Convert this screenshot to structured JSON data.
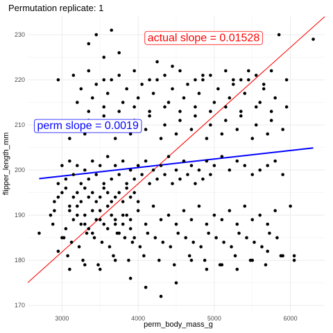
{
  "chart_data": {
    "type": "scatter",
    "title": "Permutation replicate: 1",
    "xlabel": "perm_body_mass_g",
    "ylabel": "flipper_length_mm",
    "xlim": [
      2550,
      6450
    ],
    "ylim": [
      168.5,
      234
    ],
    "x_ticks": [
      3000,
      4000,
      5000,
      6000
    ],
    "y_ticks": [
      170,
      180,
      190,
      200,
      210,
      220,
      230
    ],
    "grid": true,
    "annotations": [
      {
        "text": "actual slope = 0.01528",
        "x": 4860,
        "y": 229.5,
        "color": "#ff0000"
      },
      {
        "text": "perm slope = 0.0019",
        "x": 3340,
        "y": 210,
        "color": "#0000ff"
      }
    ],
    "lines": [
      {
        "name": "actual",
        "color": "#ff0000",
        "x": [
          2550,
          6450
        ],
        "y": [
          175.05,
          234.0
        ]
      },
      {
        "name": "perm",
        "color": "#0000ff",
        "x": [
          2700,
          6300
        ],
        "y": [
          198.1,
          204.9
        ]
      }
    ],
    "points": {
      "x": [
        2700,
        2850,
        2880,
        2900,
        2950,
        3000,
        3050,
        3100,
        3150,
        3200,
        3250,
        3300,
        3350,
        3400,
        3450,
        3500,
        3550,
        3600,
        3650,
        3700,
        3750,
        3800,
        3850,
        3900,
        3950,
        2900,
        2950,
        3000,
        3050,
        3100,
        3150,
        3200,
        3250,
        3300,
        3350,
        3400,
        3450,
        3500,
        3550,
        3600,
        3650,
        3700,
        3750,
        3800,
        3850,
        3900,
        3950,
        4000,
        2950,
        3050,
        3150,
        3250,
        3350,
        3450,
        3550,
        3650,
        3750,
        3850,
        3950,
        4050,
        4150,
        4250,
        4350,
        4450,
        4550,
        4650,
        4750,
        4850,
        4950,
        3000,
        3100,
        3200,
        3300,
        3400,
        3500,
        3600,
        3700,
        3800,
        3900,
        4000,
        4100,
        4200,
        4300,
        4400,
        4500,
        4600,
        4700,
        4800,
        4900,
        5000,
        5100,
        5200,
        5300,
        5400,
        5500,
        5600,
        5700,
        5800,
        5900,
        3025,
        3125,
        3225,
        3325,
        3425,
        3525,
        3625,
        3725,
        3825,
        3925,
        4025,
        4125,
        4225,
        4325,
        4425,
        4525,
        4625,
        4725,
        4825,
        4925,
        5025,
        5125,
        5225,
        5325,
        5425,
        5525,
        5625,
        5725,
        5825,
        3075,
        3275,
        3475,
        3675,
        3875,
        4075,
        4275,
        4475,
        4675,
        4875,
        5075,
        5275,
        5475,
        5675,
        5875,
        6050,
        3150,
        3350,
        3550,
        3750,
        3950,
        4150,
        4350,
        4550,
        4750,
        4950,
        5150,
        5350,
        5550,
        5750,
        3200,
        3400,
        3600,
        3800,
        4000,
        4200,
        4400,
        4600,
        4800,
        5000,
        5200,
        5400,
        5600,
        5800,
        3250,
        3450,
        3650,
        3850,
        4050,
        4250,
        4450,
        4650,
        4850,
        5050,
        5250,
        5450,
        5650,
        2950,
        3150,
        3350,
        3550,
        3750,
        3950,
        4150,
        4350,
        4550,
        4750,
        4950,
        5150,
        5350,
        5550,
        5750,
        5950,
        3100,
        3300,
        3500,
        3700,
        3900,
        4100,
        4300,
        4500,
        4700,
        4900,
        5100,
        5300,
        5500,
        5700,
        5900,
        3350,
        3550,
        3750,
        3950,
        4150,
        4350,
        4550,
        4750,
        4950,
        5150,
        5350,
        5550,
        5750,
        5950,
        3200,
        3400,
        3600,
        3800,
        4000,
        4200,
        4400,
        4600,
        4800,
        5000,
        5200,
        5400,
        5600,
        5800,
        6000,
        3300,
        3500,
        3700,
        3900,
        4100,
        4300,
        4500,
        4700,
        4900,
        5100,
        5300,
        5500,
        5700,
        3650,
        3450,
        3350,
        3550,
        3750,
        4250,
        4450,
        4850,
        5250,
        5650,
        6300,
        5850,
        5450,
        3100,
        3300,
        3500,
        3700,
        3900,
        4100,
        4300,
        4500,
        4700,
        4900,
        5100,
        5300,
        5500,
        5700,
        5900,
        6050
      ],
      "y": [
        186,
        190,
        188,
        191,
        182,
        185,
        187,
        191,
        189,
        192,
        188,
        190,
        187,
        186,
        189,
        191,
        188,
        187,
        190,
        189,
        186,
        188,
        190,
        187,
        185,
        193,
        194,
        195,
        196,
        192,
        194,
        195,
        193,
        196,
        194,
        195,
        193,
        194,
        196,
        195,
        193,
        194,
        195,
        193,
        196,
        194,
        195,
        193,
        197,
        198,
        199,
        197,
        198,
        199,
        197,
        198,
        199,
        197,
        198,
        199,
        197,
        198,
        199,
        197,
        198,
        199,
        197,
        198,
        199,
        201,
        202,
        201,
        200,
        202,
        201,
        203,
        201,
        202,
        200,
        201,
        202,
        200,
        201,
        203,
        200,
        202,
        201,
        200,
        202,
        201,
        203,
        200,
        202,
        201,
        199,
        200,
        201,
        202,
        199,
        185,
        184,
        183,
        186,
        185,
        184,
        183,
        186,
        185,
        184,
        183,
        186,
        185,
        184,
        183,
        186,
        185,
        184,
        183,
        186,
        185,
        184,
        183,
        186,
        185,
        184,
        183,
        186,
        185,
        181,
        180,
        179,
        181,
        180,
        181,
        180,
        179,
        181,
        180,
        179,
        181,
        180,
        179,
        181,
        180,
        210,
        211,
        212,
        210,
        211,
        212,
        210,
        211,
        212,
        210,
        211,
        212,
        210,
        211,
        215,
        216,
        217,
        215,
        216,
        217,
        215,
        216,
        217,
        215,
        216,
        217,
        215,
        216,
        218,
        219,
        220,
        218,
        219,
        220,
        218,
        219,
        220,
        218,
        219,
        220,
        218,
        220,
        221,
        222,
        220,
        221,
        222,
        220,
        221,
        222,
        220,
        221,
        222,
        220,
        221,
        222,
        220,
        207,
        208,
        209,
        207,
        208,
        209,
        207,
        208,
        209,
        207,
        208,
        209,
        207,
        208,
        209,
        213,
        214,
        213,
        214,
        213,
        214,
        213,
        214,
        213,
        214,
        213,
        214,
        213,
        214,
        190,
        191,
        192,
        190,
        191,
        192,
        190,
        191,
        192,
        190,
        191,
        192,
        190,
        191,
        192,
        188,
        189,
        188,
        189,
        188,
        189,
        188,
        189,
        188,
        189,
        188,
        189,
        188,
        231,
        230,
        228,
        225,
        226,
        224,
        223,
        221,
        220,
        219,
        229,
        230,
        222,
        178,
        179,
        178,
        180,
        176,
        174,
        172,
        175,
        180,
        178,
        179,
        178,
        180,
        182,
        181,
        181
      ]
    }
  }
}
